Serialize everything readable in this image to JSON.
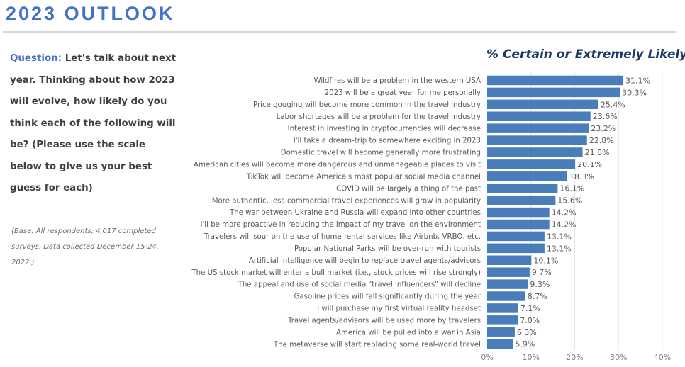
{
  "header": {
    "title": "2023 OUTLOOK"
  },
  "question": {
    "label": "Question:",
    "text": "Let's talk about next year.  Thinking about how 2023 will evolve, how likely do you think each of the following will be? (Please use the scale below to give us your best guess for each)"
  },
  "base_note": "(Base: All respondents, 4,017 completed surveys. Data collected December 15-24, 2022.)",
  "colors": {
    "title": "#4472c4",
    "bar": "#4a7ebb",
    "chart_title": "#1f3864",
    "grid": "#e6e6e6"
  },
  "chart_data": {
    "type": "bar",
    "orientation": "horizontal",
    "title": "% Certain or Extremely Likely",
    "xlabel": "",
    "ylabel": "",
    "xlim": [
      0,
      40
    ],
    "x_ticks": [
      0,
      10,
      20,
      30,
      40
    ],
    "x_tick_labels": [
      "0%",
      "10%",
      "20%",
      "30%",
      "40%"
    ],
    "grid": true,
    "legend": "none",
    "categories": [
      "Wildfires will be a problem in the western USA",
      "2023 will be a great year for me personally",
      "Price gouging will become more common in the travel industry",
      "Labor shortages will be a problem for the travel industry",
      "Interest in investing in cryptocurrencies will decrease",
      "I'll take a dream-trip to somewhere exciting in 2023",
      "Domestic travel will become generally more frustrating",
      "American cities will become more dangerous and unmanageable places to visit",
      "TikTok will become America's most popular social media channel",
      "COVID will be largely a thing of the past",
      "More authentic, less commercial travel experiences will grow in popularity",
      "The war between Ukraine and Russia will expand into other countries",
      "I'll be more proactive in reducing the impact of my travel on the environment",
      "Travelers will sour on the use of home rental services like Airbnb, VRBO, etc.",
      "Popular National Parks will be over-run with tourists",
      "Artificial intelligence will begin to replace travel agents/advisors",
      "The US stock market will enter a bull market (i.e., stock prices will rise strongly)",
      "The appeal and use of social media \"travel influencers\" will decline",
      "Gasoline prices will fall significantly during the year",
      "I will purchase my first virtual reality headset",
      "Travel agents/advisors will be used more by travelers",
      "America will be pulled into a war in Asia",
      "The metaverse will start replacing some real-world travel"
    ],
    "values": [
      31.1,
      30.3,
      25.4,
      23.6,
      23.2,
      22.8,
      21.8,
      20.1,
      18.3,
      16.1,
      15.6,
      14.2,
      14.2,
      13.1,
      13.1,
      10.1,
      9.7,
      9.3,
      8.7,
      7.1,
      7.0,
      6.3,
      5.9
    ],
    "value_labels": [
      "31.1%",
      "30.3%",
      "25.4%",
      "23.6%",
      "23.2%",
      "22.8%",
      "21.8%",
      "20.1%",
      "18.3%",
      "16.1%",
      "15.6%",
      "14.2%",
      "14.2%",
      "13.1%",
      "13.1%",
      "10.1%",
      "9.7%",
      "9.3%",
      "8.7%",
      "7.1%",
      "7.0%",
      "6.3%",
      "5.9%"
    ]
  }
}
